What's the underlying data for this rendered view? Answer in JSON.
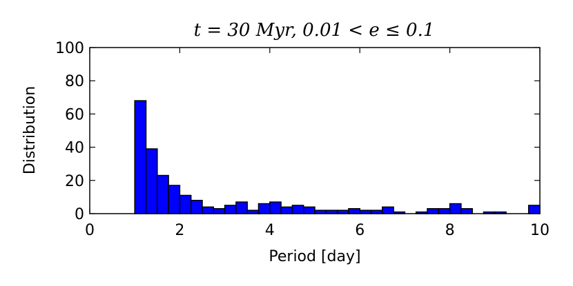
{
  "chart_data": {
    "type": "bar",
    "title": "t = 30 Myr, 0.01 < e ≤ 0.1",
    "xlabel": "Period [day]",
    "ylabel": "Distribution",
    "xlim": [
      0,
      10
    ],
    "ylim": [
      0,
      100
    ],
    "xticks": [
      0,
      2,
      4,
      6,
      8,
      10
    ],
    "yticks": [
      0,
      20,
      40,
      60,
      80,
      100
    ],
    "bin_width": 0.25,
    "bin_start": 1.0,
    "bar_color": "#0000ff",
    "edge_color": "#000000",
    "grid": false,
    "values": [
      68,
      39,
      23,
      17,
      11,
      8,
      4,
      3,
      5,
      7,
      2,
      6,
      7,
      4,
      5,
      4,
      2,
      2,
      2,
      3,
      2,
      2,
      4,
      1,
      0,
      1,
      3,
      3,
      6,
      3,
      0,
      1,
      1,
      0,
      0,
      5
    ]
  }
}
